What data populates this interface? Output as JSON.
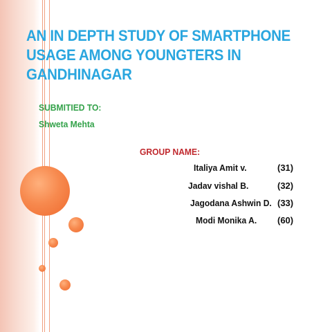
{
  "slide": {
    "title": "AN IN DEPTH STUDY OF SMARTPHONE USAGE AMONG YOUNGTERS IN GANDHINAGAR",
    "submitted_to_label": "SUBMITIED TO:",
    "submitted_to_name": "Shweta Mehta",
    "group_label": "GROUP NAME:",
    "members": [
      {
        "name": "Italiya Amit v.",
        "roll": "(31)"
      },
      {
        "name": "Jadav vishal B.",
        "roll": "(32)"
      },
      {
        "name": "Jagodana Ashwin D.",
        "roll": "(33)"
      },
      {
        "name": "Modi Monika A.",
        "roll": "(60)"
      }
    ]
  },
  "colors": {
    "title": "#2aa6df",
    "submitted": "#33a24a",
    "group_label": "#c0282d",
    "accent_circles": "#f78a4f",
    "side_band": "#f9ddd3"
  }
}
